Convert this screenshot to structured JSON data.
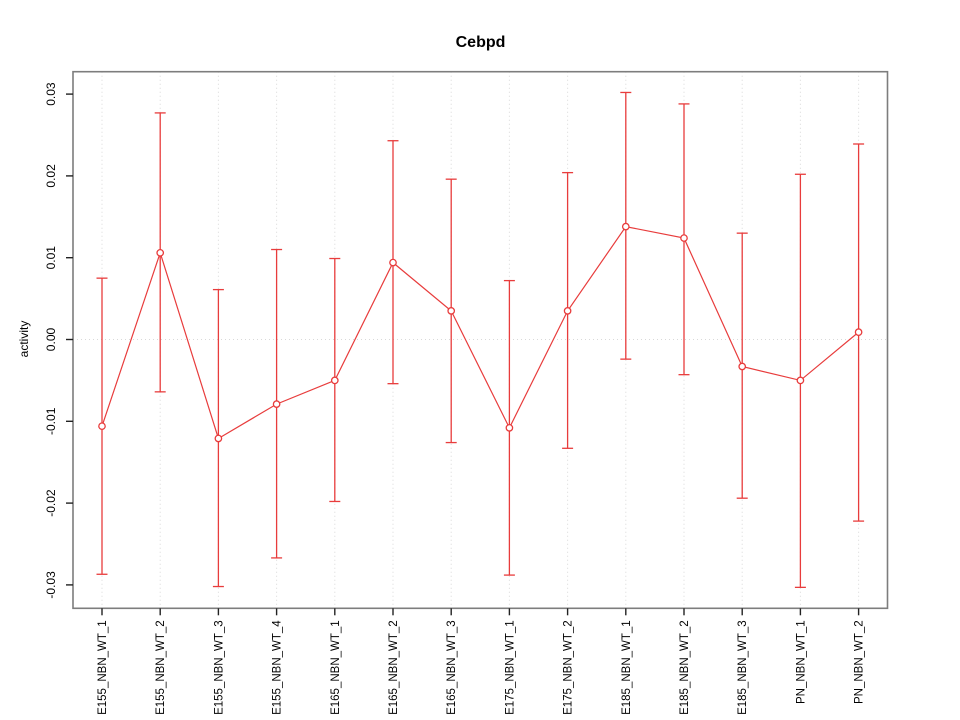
{
  "window": {
    "background": "#ffffff"
  },
  "chart_data": {
    "type": "scatter",
    "title": "Cebpd",
    "xlabel": "",
    "ylabel": "activity",
    "ylim": [
      -0.033,
      0.033
    ],
    "yticks": [
      -0.03,
      -0.02,
      -0.01,
      0,
      0.01,
      0.02,
      0.03
    ],
    "ytick_labels": [
      "-0.03",
      "-0.02",
      "-0.01",
      "0.00",
      "0.01",
      "0.02",
      "0.03"
    ],
    "grid": "vertical dotted line at each category; horizontal dotted line at y=0; ticks outside on left and bottom; full box frame; no legend",
    "point_style": "open circle with vertical error bars and horizontal caps, points connected by straight line segments",
    "series_name": "activity",
    "series_color": "#e83c3c",
    "grid_color": "#d9d9d9",
    "frame_color": "#7d7d7d",
    "tick_color": "#222222",
    "categories": [
      "E155_NBN_WT_1",
      "E155_NBN_WT_2",
      "E155_NBN_WT_3",
      "E155_NBN_WT_4",
      "E165_NBN_WT_1",
      "E165_NBN_WT_2",
      "E165_NBN_WT_3",
      "E175_NBN_WT_1",
      "E175_NBN_WT_2",
      "E185_NBN_WT_1",
      "E185_NBN_WT_2",
      "E185_NBN_WT_3",
      "PN_NBN_WT_1",
      "PN_NBN_WT_2"
    ],
    "means": [
      -0.0106,
      0.0106,
      -0.0121,
      -0.0079,
      -0.005,
      0.0094,
      0.0035,
      -0.0108,
      0.0035,
      0.0138,
      0.0124,
      -0.0033,
      -0.005,
      0.0009
    ],
    "lower": [
      -0.0287,
      -0.0064,
      -0.0302,
      -0.0267,
      -0.0198,
      -0.0054,
      -0.0126,
      -0.0288,
      -0.0133,
      -0.0024,
      -0.0043,
      -0.0194,
      -0.0303,
      -0.0222
    ],
    "upper": [
      0.0075,
      0.0277,
      0.0061,
      0.011,
      0.0099,
      0.0243,
      0.0196,
      0.0072,
      0.0204,
      0.0302,
      0.0288,
      0.013,
      0.0202,
      0.0239
    ]
  }
}
